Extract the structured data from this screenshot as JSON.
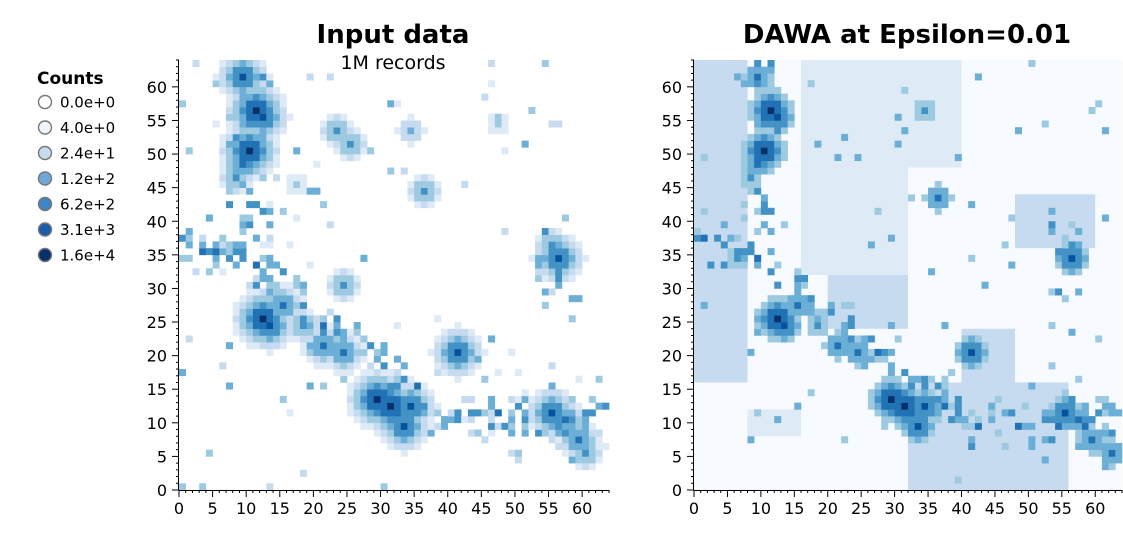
{
  "chart_data": {
    "type": "heatmap",
    "legend": {
      "title": "Counts",
      "labels": [
        "0.0e+0",
        "4.0e+0",
        "2.4e+1",
        "1.2e+2",
        "6.2e+2",
        "3.1e+3",
        "1.6e+4"
      ],
      "colors": [
        "#ffffff",
        "#f0f6fc",
        "#c6dbef",
        "#6fa8d6",
        "#3f86c4",
        "#1d5ca8",
        "#08306b"
      ],
      "placement": "left"
    },
    "palette": [
      "#f7fbff",
      "#deebf7",
      "#c6dbef",
      "#9ecae1",
      "#6baed6",
      "#4292c6",
      "#2171b5",
      "#08519c",
      "#08306b"
    ],
    "panels": [
      {
        "title": "Input data",
        "subtitle": "1M records",
        "grid_size": 64,
        "x_ticks": [
          0,
          5,
          10,
          15,
          20,
          25,
          30,
          35,
          40,
          45,
          50,
          55,
          60
        ],
        "y_ticks": [
          0,
          5,
          10,
          15,
          20,
          25,
          30,
          35,
          40,
          45,
          50,
          55,
          60
        ],
        "xlim": [
          0,
          64
        ],
        "ylim": [
          0,
          64
        ],
        "hotspots": [
          {
            "x": 11,
            "y": 56,
            "level": 8
          },
          {
            "x": 12,
            "y": 55,
            "level": 7
          },
          {
            "x": 9,
            "y": 61,
            "level": 7
          },
          {
            "x": 10,
            "y": 50,
            "level": 8
          },
          {
            "x": 9,
            "y": 48,
            "level": 6
          },
          {
            "x": 8,
            "y": 46,
            "level": 5
          },
          {
            "x": 12,
            "y": 25,
            "level": 8
          },
          {
            "x": 13,
            "y": 24,
            "level": 7
          },
          {
            "x": 15,
            "y": 27,
            "level": 6
          },
          {
            "x": 18,
            "y": 24,
            "level": 5
          },
          {
            "x": 21,
            "y": 21,
            "level": 6
          },
          {
            "x": 24,
            "y": 20,
            "level": 6
          },
          {
            "x": 29,
            "y": 13,
            "level": 8
          },
          {
            "x": 31,
            "y": 12,
            "level": 8
          },
          {
            "x": 34,
            "y": 12,
            "level": 7
          },
          {
            "x": 33,
            "y": 9,
            "level": 7
          },
          {
            "x": 41,
            "y": 20,
            "level": 7
          },
          {
            "x": 55,
            "y": 11,
            "level": 7
          },
          {
            "x": 57,
            "y": 10,
            "level": 6
          },
          {
            "x": 59,
            "y": 7,
            "level": 6
          },
          {
            "x": 56,
            "y": 34,
            "level": 7
          },
          {
            "x": 55,
            "y": 36,
            "level": 5
          },
          {
            "x": 36,
            "y": 44,
            "level": 5
          },
          {
            "x": 24,
            "y": 30,
            "level": 5
          },
          {
            "x": 17,
            "y": 45,
            "level": 3
          },
          {
            "x": 23,
            "y": 53,
            "level": 5
          },
          {
            "x": 25,
            "y": 51,
            "level": 5
          },
          {
            "x": 34,
            "y": 53,
            "level": 4
          },
          {
            "x": 47,
            "y": 54,
            "level": 3
          },
          {
            "x": 60,
            "y": 5,
            "level": 5
          }
        ]
      },
      {
        "title": "DAWA at Epsilon=0.01",
        "subtitle": "",
        "grid_size": 64,
        "x_ticks": [
          0,
          5,
          10,
          15,
          20,
          25,
          30,
          35,
          40,
          45,
          50,
          55,
          60
        ],
        "y_ticks": [
          0,
          5,
          10,
          15,
          20,
          25,
          30,
          35,
          40,
          45,
          50,
          55,
          60
        ],
        "xlim": [
          0,
          64
        ],
        "ylim": [
          0,
          64
        ],
        "hotspots": [
          {
            "x": 11,
            "y": 56,
            "level": 8
          },
          {
            "x": 12,
            "y": 55,
            "level": 7
          },
          {
            "x": 9,
            "y": 61,
            "level": 6
          },
          {
            "x": 10,
            "y": 50,
            "level": 8
          },
          {
            "x": 9,
            "y": 48,
            "level": 6
          },
          {
            "x": 8,
            "y": 46,
            "level": 5
          },
          {
            "x": 12,
            "y": 25,
            "level": 8
          },
          {
            "x": 13,
            "y": 24,
            "level": 7
          },
          {
            "x": 15,
            "y": 27,
            "level": 6
          },
          {
            "x": 18,
            "y": 24,
            "level": 5
          },
          {
            "x": 21,
            "y": 21,
            "level": 6
          },
          {
            "x": 24,
            "y": 20,
            "level": 6
          },
          {
            "x": 29,
            "y": 13,
            "level": 8
          },
          {
            "x": 31,
            "y": 12,
            "level": 8
          },
          {
            "x": 34,
            "y": 12,
            "level": 7
          },
          {
            "x": 33,
            "y": 9,
            "level": 7
          },
          {
            "x": 41,
            "y": 20,
            "level": 7
          },
          {
            "x": 55,
            "y": 11,
            "level": 7
          },
          {
            "x": 57,
            "y": 10,
            "level": 6
          },
          {
            "x": 59,
            "y": 7,
            "level": 6
          },
          {
            "x": 56,
            "y": 34,
            "level": 7
          },
          {
            "x": 36,
            "y": 43,
            "level": 6
          },
          {
            "x": 22,
            "y": 52,
            "level": 4
          },
          {
            "x": 34,
            "y": 56,
            "level": 5
          },
          {
            "x": 6,
            "y": 34,
            "level": 5
          },
          {
            "x": 62,
            "y": 5,
            "level": 6
          }
        ],
        "blocks": [
          {
            "x0": 0,
            "y0": 16,
            "x1": 8,
            "y1": 64,
            "level": 2
          },
          {
            "x0": 16,
            "y0": 48,
            "x1": 40,
            "y1": 64,
            "level": 1
          },
          {
            "x0": 16,
            "y0": 32,
            "x1": 32,
            "y1": 48,
            "level": 1
          },
          {
            "x0": 32,
            "y0": 0,
            "x1": 56,
            "y1": 16,
            "level": 2
          },
          {
            "x0": 48,
            "y0": 36,
            "x1": 60,
            "y1": 44,
            "level": 2
          },
          {
            "x0": 8,
            "y0": 8,
            "x1": 16,
            "y1": 12,
            "level": 1
          },
          {
            "x0": 40,
            "y0": 16,
            "x1": 48,
            "y1": 24,
            "level": 2
          },
          {
            "x0": 20,
            "y0": 24,
            "x1": 32,
            "y1": 32,
            "level": 2
          }
        ]
      }
    ]
  }
}
